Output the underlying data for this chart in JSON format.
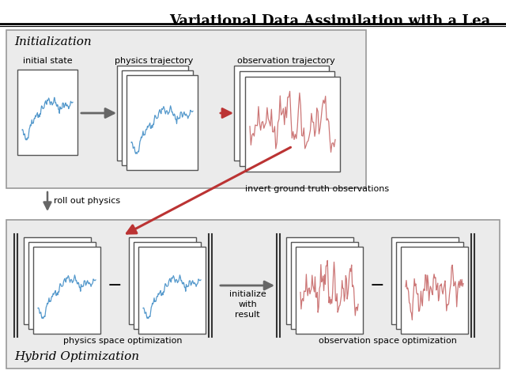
{
  "title": "Variational Data Assimilation with a Lea",
  "title_fontsize": 13,
  "bg_color": "#ebebeb",
  "card_bg": "#ffffff",
  "card_border": "#555555",
  "blue_line_color": "#5599cc",
  "red_line_color": "#cc7777",
  "arrow_gray": "#666666",
  "arrow_red": "#bb3333",
  "init_label": "Initialization",
  "hybrid_label": "Hybrid Optimization",
  "label_initial_state": "initial state",
  "label_physics_traj": "physics trajectory",
  "label_obs_traj": "observation trajectory",
  "label_roll_out": "roll out physics",
  "label_invert": "invert ground truth observations",
  "label_phys_opt": "physics space optimization",
  "label_obs_opt": "observation space optimization",
  "label_initialize": "initialize\nwith\nresult"
}
